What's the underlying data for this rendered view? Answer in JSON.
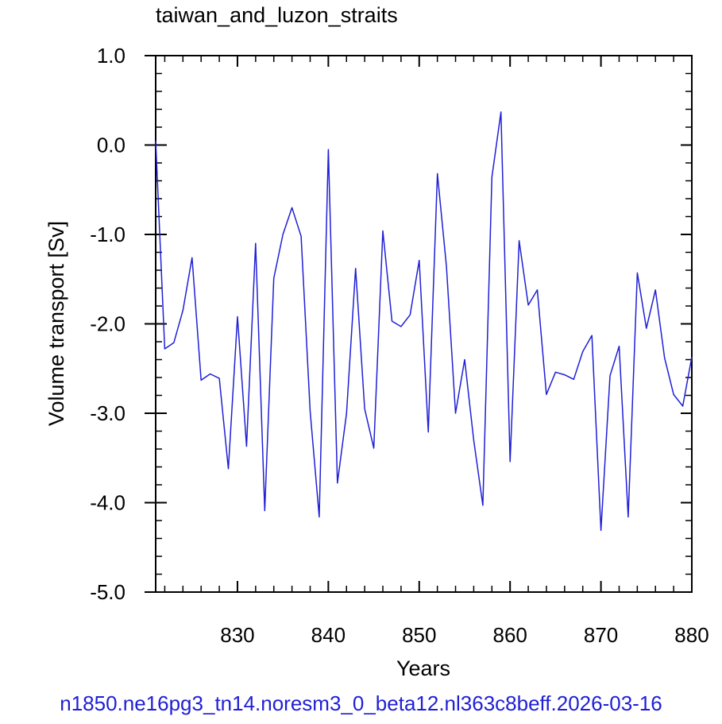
{
  "chart_data": {
    "type": "line",
    "title": "taiwan_and_luzon_straits",
    "xlabel": "Years",
    "ylabel": "Volume transport [Sv]",
    "xlim": [
      821,
      880
    ],
    "ylim": [
      -5.0,
      1.0
    ],
    "xticks": [
      830,
      840,
      850,
      860,
      870,
      880
    ],
    "xtick_labels": [
      "830",
      "840",
      "850",
      "860",
      "870",
      "880"
    ],
    "yticks": [
      1.0,
      0.0,
      -1.0,
      -2.0,
      -3.0,
      -4.0,
      -5.0
    ],
    "ytick_labels": [
      "1.0",
      "0.0",
      "-1.0",
      "-2.0",
      "-3.0",
      "-4.0",
      "-5.0"
    ],
    "grid": false,
    "series": [
      {
        "line_color": "#1f1fd6",
        "x": [
          821,
          822,
          823,
          824,
          825,
          826,
          827,
          828,
          829,
          830,
          831,
          832,
          833,
          834,
          835,
          836,
          837,
          838,
          839,
          840,
          841,
          842,
          843,
          844,
          845,
          846,
          847,
          848,
          849,
          850,
          851,
          852,
          853,
          854,
          855,
          856,
          857,
          858,
          859,
          860,
          861,
          862,
          863,
          864,
          865,
          866,
          867,
          868,
          869,
          870,
          871,
          872,
          873,
          874,
          875,
          876,
          877,
          878,
          879,
          880
        ],
        "values": [
          0.05,
          -2.28,
          -2.21,
          -1.85,
          -1.26,
          -2.63,
          -2.56,
          -2.61,
          -3.62,
          -1.92,
          -3.37,
          -1.1,
          -4.09,
          -1.49,
          -1.0,
          -0.7,
          -1.02,
          -2.98,
          -4.16,
          -0.05,
          -3.78,
          -3.0,
          -1.38,
          -2.95,
          -3.39,
          -0.96,
          -1.97,
          -2.03,
          -1.9,
          -1.29,
          -3.21,
          -0.32,
          -1.36,
          -3.0,
          -2.4,
          -3.3,
          -4.03,
          -0.36,
          0.37,
          -3.54,
          -1.07,
          -1.79,
          -1.62,
          -2.79,
          -2.54,
          -2.57,
          -2.62,
          -2.31,
          -2.13,
          -4.31,
          -2.58,
          -2.25,
          -4.16,
          -1.43,
          -2.05,
          -1.62,
          -2.38,
          -2.79,
          -2.92,
          -2.37
        ]
      }
    ]
  },
  "footer": {
    "text": "n1850.ne16pg3_tn14.noresm3_0_beta12.nl363c8beff.2026-03-16"
  }
}
